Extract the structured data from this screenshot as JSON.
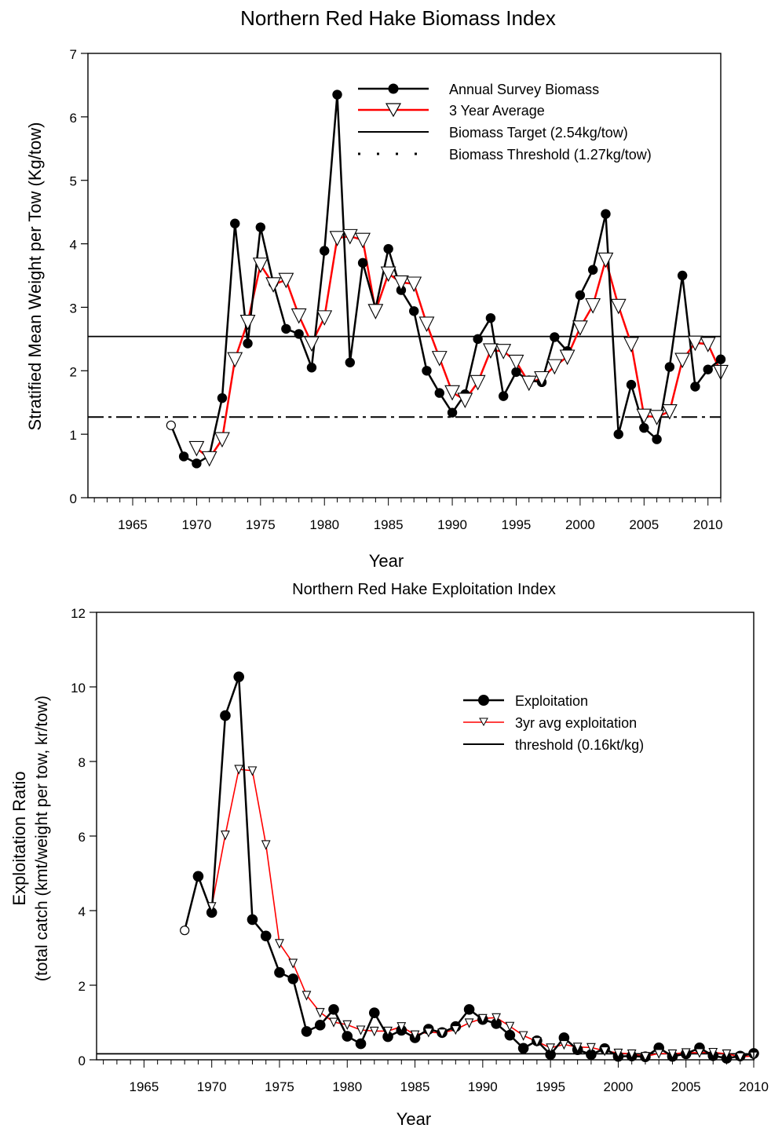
{
  "chart_data": [
    {
      "type": "line",
      "title": "Northern Red Hake Biomass Index",
      "xlabel": "Year",
      "ylabel": "Stratified Mean Weight per Tow (Kg/tow)",
      "xlim": [
        1961.5,
        2011
      ],
      "ylim": [
        0,
        7
      ],
      "x_ticks": [
        1965,
        1970,
        1975,
        1980,
        1985,
        1990,
        1995,
        2000,
        2005,
        2010
      ],
      "y_ticks": [
        0,
        1,
        2,
        3,
        4,
        5,
        6,
        7
      ],
      "grid": false,
      "legend_position": "top-right",
      "series": [
        {
          "name": "Annual Survey Biomass",
          "color": "#000000",
          "marker": "filled-circle",
          "x": [
            1968,
            1969,
            1970,
            1971,
            1972,
            1973,
            1974,
            1975,
            1976,
            1977,
            1978,
            1979,
            1980,
            1981,
            1982,
            1983,
            1984,
            1985,
            1986,
            1987,
            1988,
            1989,
            1990,
            1991,
            1992,
            1993,
            1994,
            1995,
            1996,
            1997,
            1998,
            1999,
            2000,
            2001,
            2002,
            2003,
            2004,
            2005,
            2006,
            2007,
            2008,
            2009,
            2010,
            2011
          ],
          "values": [
            1.14,
            0.65,
            0.54,
            0.66,
            1.57,
            4.32,
            2.43,
            4.26,
            3.38,
            2.66,
            2.58,
            2.05,
            3.89,
            6.35,
            2.13,
            3.7,
            2.98,
            3.92,
            3.27,
            2.94,
            2.0,
            1.65,
            1.34,
            1.63,
            2.5,
            2.83,
            1.6,
            1.98,
            1.85,
            1.82,
            2.53,
            2.31,
            3.19,
            3.59,
            4.47,
            1.0,
            1.78,
            1.1,
            0.92,
            2.06,
            3.5,
            1.75,
            2.02,
            2.18
          ]
        },
        {
          "name": "3 Year Average",
          "color": "#ff0000",
          "marker": "open-down-triangle",
          "x": [
            1970,
            1971,
            1972,
            1973,
            1974,
            1975,
            1976,
            1977,
            1978,
            1979,
            1980,
            1981,
            1982,
            1983,
            1984,
            1985,
            1986,
            1987,
            1988,
            1989,
            1990,
            1991,
            1992,
            1993,
            1994,
            1995,
            1996,
            1997,
            1998,
            1999,
            2000,
            2001,
            2002,
            2003,
            2004,
            2005,
            2006,
            2007,
            2008,
            2009,
            2010,
            2011
          ],
          "values": [
            0.78,
            0.62,
            0.92,
            2.18,
            2.77,
            3.67,
            3.36,
            3.43,
            2.87,
            2.43,
            2.84,
            4.09,
            4.12,
            4.06,
            2.94,
            3.53,
            3.39,
            3.37,
            2.74,
            2.2,
            1.66,
            1.54,
            1.82,
            2.32,
            2.31,
            2.14,
            1.81,
            1.88,
            2.07,
            2.22,
            2.68,
            3.03,
            3.75,
            3.02,
            2.42,
            1.29,
            1.27,
            1.36,
            2.17,
            2.44,
            2.42,
            1.98
          ]
        }
      ],
      "reference_lines": [
        {
          "name": "Biomass Target (2.54kg/tow)",
          "value": 2.54,
          "style": "solid",
          "color": "#000000"
        },
        {
          "name": "Biomass Threshold (1.27kg/tow)",
          "value": 1.27,
          "style": "dash-dot",
          "color": "#000000"
        }
      ]
    },
    {
      "type": "line",
      "title": "Northern Red Hake Exploitation Index",
      "xlabel": "Year",
      "ylabel_line1": "Exploitation Ratio",
      "ylabel_line2": "(total catch (kmt/weight per tow, kr/tow)",
      "xlim": [
        1961.5,
        2010
      ],
      "ylim": [
        0,
        12
      ],
      "x_ticks": [
        1965,
        1970,
        1975,
        1980,
        1985,
        1990,
        1995,
        2000,
        2005,
        2010
      ],
      "y_ticks": [
        0,
        2,
        4,
        6,
        8,
        10,
        12
      ],
      "grid": false,
      "legend_position": "top-right",
      "series": [
        {
          "name": "Exploitation",
          "color": "#000000",
          "marker": "filled-circle",
          "x": [
            1968,
            1969,
            1970,
            1971,
            1972,
            1973,
            1974,
            1975,
            1976,
            1977,
            1978,
            1979,
            1980,
            1981,
            1982,
            1983,
            1984,
            1985,
            1986,
            1987,
            1988,
            1989,
            1990,
            1991,
            1992,
            1993,
            1994,
            1995,
            1996,
            1997,
            1998,
            1999,
            2000,
            2001,
            2002,
            2003,
            2004,
            2005,
            2006,
            2007,
            2008,
            2009,
            2010
          ],
          "values": [
            3.47,
            4.92,
            3.95,
            9.23,
            10.27,
            3.76,
            3.32,
            2.34,
            2.17,
            0.76,
            0.93,
            1.35,
            0.63,
            0.43,
            1.26,
            0.62,
            0.79,
            0.59,
            0.82,
            0.73,
            0.89,
            1.35,
            1.08,
            0.97,
            0.66,
            0.31,
            0.51,
            0.14,
            0.59,
            0.27,
            0.14,
            0.3,
            0.09,
            0.1,
            0.08,
            0.32,
            0.09,
            0.16,
            0.32,
            0.11,
            0.04,
            0.1,
            0.17
          ]
        },
        {
          "name": "3yr avg exploitation",
          "color": "#ff0000",
          "marker": "open-down-triangle",
          "x": [
            1970,
            1971,
            1972,
            1973,
            1974,
            1975,
            1976,
            1977,
            1978,
            1979,
            1980,
            1981,
            1982,
            1983,
            1984,
            1985,
            1986,
            1987,
            1988,
            1989,
            1990,
            1991,
            1992,
            1993,
            1994,
            1995,
            1996,
            1997,
            1998,
            1999,
            2000,
            2001,
            2002,
            2003,
            2004,
            2005,
            2006,
            2007,
            2008,
            2009,
            2010
          ],
          "values": [
            4.11,
            6.03,
            7.79,
            7.75,
            5.77,
            3.12,
            2.59,
            1.73,
            1.27,
            1.01,
            0.94,
            0.8,
            0.77,
            0.77,
            0.89,
            0.67,
            0.74,
            0.72,
            0.81,
            0.99,
            1.11,
            1.13,
            0.9,
            0.65,
            0.49,
            0.32,
            0.41,
            0.34,
            0.33,
            0.24,
            0.18,
            0.16,
            0.09,
            0.17,
            0.16,
            0.19,
            0.19,
            0.2,
            0.16,
            0.08,
            0.1
          ]
        }
      ],
      "reference_lines": [
        {
          "name": "threshold (0.16kt/kg)",
          "value": 0.16,
          "style": "solid",
          "color": "#000000"
        }
      ]
    }
  ]
}
